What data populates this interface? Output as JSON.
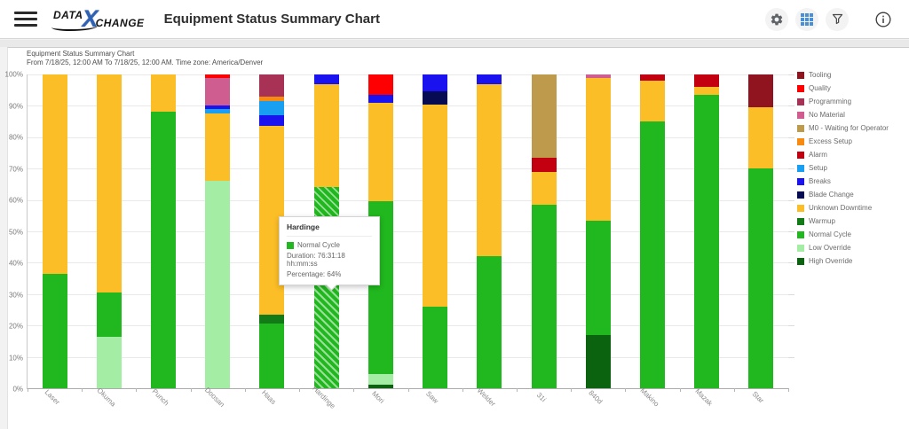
{
  "header": {
    "logo": {
      "data": "DATA",
      "x": "X",
      "change": "CHANGE"
    },
    "title": "Equipment Status Summary Chart"
  },
  "chart_header": {
    "title": "Equipment Status Summary Chart",
    "subtitle": "From 7/18/25, 12:00 AM To 7/18/25, 12:00 AM. Time zone: America/Denver"
  },
  "tooltip": {
    "title": "Hardinge",
    "series": "Normal Cycle",
    "duration": "Duration: 76:31:18 hh:mm:ss",
    "percentage": "Percentage: 64%",
    "swatch_color": "#21b71e"
  },
  "chart_data": {
    "type": "bar",
    "stacked": true,
    "unit": "percent",
    "ylim": [
      0,
      100
    ],
    "grid": true,
    "legend_position": "right",
    "y_ticks": [
      "0%",
      "10%",
      "20%",
      "30%",
      "40%",
      "50%",
      "60%",
      "70%",
      "80%",
      "90%",
      "100%"
    ],
    "categories": [
      "Laser",
      "Okuma",
      "Punch",
      "Doosan",
      "Haas",
      "Hardinge",
      "Mori",
      "Saw",
      "Welder",
      "31i",
      "840d",
      "Makino",
      "Mazak",
      "Star"
    ],
    "legend": [
      {
        "name": "Tooling",
        "color": "#8f141f"
      },
      {
        "name": "Quality",
        "color": "#fe0002"
      },
      {
        "name": "Programming",
        "color": "#a83256"
      },
      {
        "name": "No Material",
        "color": "#d05d90"
      },
      {
        "name": "M0 - Waiting for Operator",
        "color": "#bd9a4c"
      },
      {
        "name": "Excess Setup",
        "color": "#f78b12"
      },
      {
        "name": "Alarm",
        "color": "#c3000f"
      },
      {
        "name": "Setup",
        "color": "#189ff2"
      },
      {
        "name": "Breaks",
        "color": "#1a13f0"
      },
      {
        "name": "Blade Change",
        "color": "#070c52"
      },
      {
        "name": "Unknown Downtime",
        "color": "#fcbe27"
      },
      {
        "name": "Warmup",
        "color": "#127a16"
      },
      {
        "name": "Normal Cycle",
        "color": "#21b71e"
      },
      {
        "name": "Low Override",
        "color": "#a4eda4"
      },
      {
        "name": "High Override",
        "color": "#0b6310"
      }
    ],
    "bars": [
      {
        "category": "Laser",
        "segments": [
          {
            "name": "Normal Cycle",
            "value": 36.5
          },
          {
            "name": "Unknown Downtime",
            "value": 63.5
          }
        ]
      },
      {
        "category": "Okuma",
        "segments": [
          {
            "name": "Low Override",
            "value": 16.5
          },
          {
            "name": "Normal Cycle",
            "value": 14
          },
          {
            "name": "Unknown Downtime",
            "value": 69.5
          }
        ]
      },
      {
        "category": "Punch",
        "segments": [
          {
            "name": "Normal Cycle",
            "value": 88
          },
          {
            "name": "Unknown Downtime",
            "value": 12
          }
        ]
      },
      {
        "category": "Doosan",
        "segments": [
          {
            "name": "Low Override",
            "value": 66
          },
          {
            "name": "Unknown Downtime",
            "value": 21.5
          },
          {
            "name": "Setup",
            "value": 1.5
          },
          {
            "name": "Breaks",
            "value": 1
          },
          {
            "name": "No Material",
            "value": 9
          },
          {
            "name": "Quality",
            "value": 1
          }
        ]
      },
      {
        "category": "Haas",
        "segments": [
          {
            "name": "Normal Cycle",
            "value": 20.5
          },
          {
            "name": "Warmup",
            "value": 3
          },
          {
            "name": "Unknown Downtime",
            "value": 60
          },
          {
            "name": "Breaks",
            "value": 3.5
          },
          {
            "name": "Setup",
            "value": 4.5
          },
          {
            "name": "Excess Setup",
            "value": 1.5
          },
          {
            "name": "Programming",
            "value": 7
          }
        ]
      },
      {
        "category": "Hardinge",
        "segments": [
          {
            "name": "Normal Cycle",
            "value": 64
          },
          {
            "name": "Unknown Downtime",
            "value": 33
          },
          {
            "name": "Breaks",
            "value": 3
          }
        ],
        "highlight": "Normal Cycle"
      },
      {
        "category": "Mori",
        "segments": [
          {
            "name": "High Override",
            "value": 1
          },
          {
            "name": "Low Override",
            "value": 3.5
          },
          {
            "name": "Normal Cycle",
            "value": 55
          },
          {
            "name": "Unknown Downtime",
            "value": 31.5
          },
          {
            "name": "Breaks",
            "value": 2.5
          },
          {
            "name": "Quality",
            "value": 6.5
          }
        ]
      },
      {
        "category": "Saw",
        "segments": [
          {
            "name": "Normal Cycle",
            "value": 26
          },
          {
            "name": "Unknown Downtime",
            "value": 64.5
          },
          {
            "name": "Blade Change",
            "value": 4
          },
          {
            "name": "Breaks",
            "value": 5.5
          }
        ]
      },
      {
        "category": "Welder",
        "segments": [
          {
            "name": "Normal Cycle",
            "value": 42
          },
          {
            "name": "Unknown Downtime",
            "value": 55
          },
          {
            "name": "Breaks",
            "value": 3
          }
        ]
      },
      {
        "category": "31i",
        "segments": [
          {
            "name": "Normal Cycle",
            "value": 58.5
          },
          {
            "name": "Unknown Downtime",
            "value": 10.5
          },
          {
            "name": "Alarm",
            "value": 4.5
          },
          {
            "name": "M0 - Waiting for Operator",
            "value": 26.5
          }
        ]
      },
      {
        "category": "840d",
        "segments": [
          {
            "name": "High Override",
            "value": 17
          },
          {
            "name": "Normal Cycle",
            "value": 36.5
          },
          {
            "name": "Unknown Downtime",
            "value": 45.5
          },
          {
            "name": "No Material",
            "value": 1
          }
        ]
      },
      {
        "category": "Makino",
        "segments": [
          {
            "name": "Normal Cycle",
            "value": 85
          },
          {
            "name": "Unknown Downtime",
            "value": 13
          },
          {
            "name": "Alarm",
            "value": 2
          }
        ]
      },
      {
        "category": "Mazak",
        "segments": [
          {
            "name": "Normal Cycle",
            "value": 93.5
          },
          {
            "name": "Unknown Downtime",
            "value": 2.5
          },
          {
            "name": "Alarm",
            "value": 4
          }
        ]
      },
      {
        "category": "Star",
        "segments": [
          {
            "name": "Normal Cycle",
            "value": 70
          },
          {
            "name": "Unknown Downtime",
            "value": 19.5
          },
          {
            "name": "Tooling",
            "value": 10.5
          }
        ]
      }
    ]
  }
}
